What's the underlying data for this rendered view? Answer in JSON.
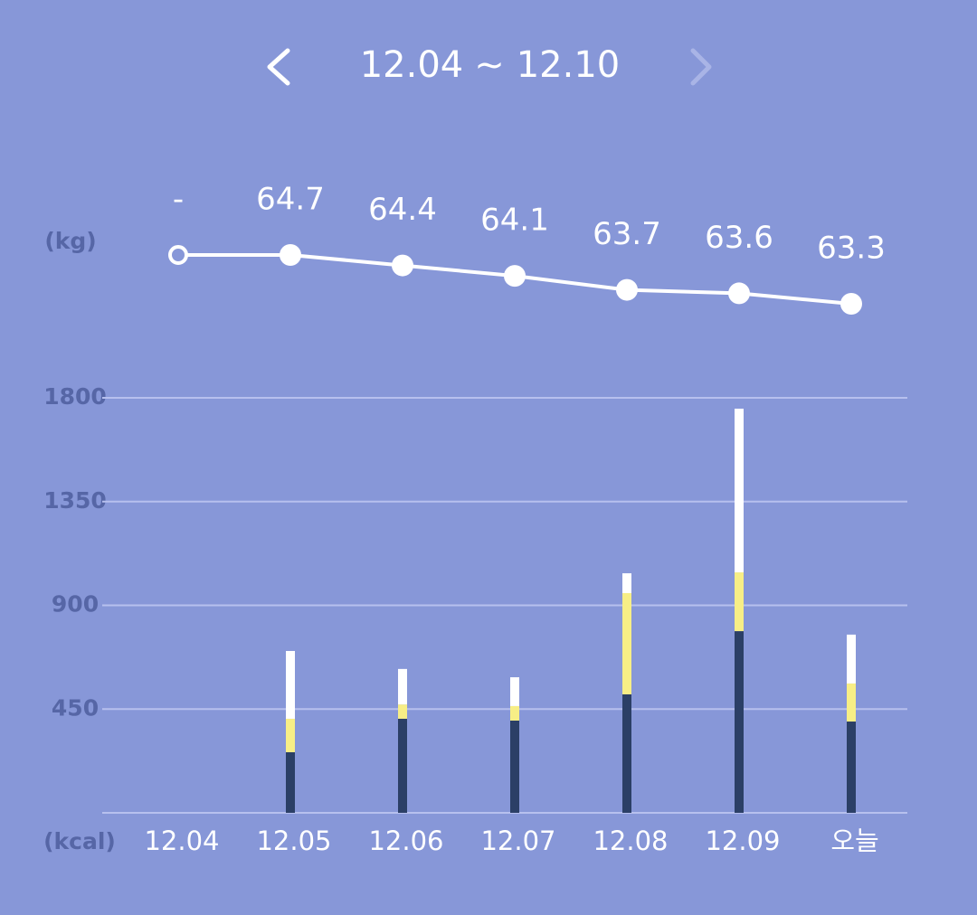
{
  "header": {
    "start": "12.04",
    "separator": "~",
    "end": "12.10"
  },
  "chart_data": [
    {
      "type": "line",
      "y_unit": "(kg)",
      "color": "#ffffff",
      "values": [
        null,
        64.7,
        64.4,
        64.1,
        63.7,
        63.6,
        63.3
      ],
      "value_labels": [
        "-",
        "64.7",
        "64.4",
        "64.1",
        "63.7",
        "63.6",
        "63.3"
      ]
    },
    {
      "type": "stacked_bar",
      "y_unit": "(kcal)",
      "categories": [
        "12.04",
        "12.05",
        "12.06",
        "12.07",
        "12.08",
        "12.09",
        "오늘"
      ],
      "series": [
        {
          "color": "#2b3f66",
          "values": [
            0,
            263,
            408,
            400,
            514,
            788,
            396
          ]
        },
        {
          "color": "#f7ee86",
          "values": [
            0,
            145,
            62,
            63,
            439,
            255,
            165
          ]
        },
        {
          "color": "#ffffff",
          "values": [
            0,
            294,
            154,
            125,
            86,
            710,
            212
          ]
        }
      ],
      "ylim": [
        0,
        1800
      ],
      "yticks": [
        450,
        900,
        1350,
        1800
      ],
      "grid": true
    }
  ]
}
